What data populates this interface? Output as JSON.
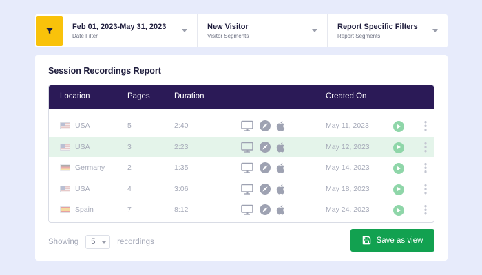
{
  "filters": {
    "date": {
      "title": "Feb 01, 2023-May 31, 2023",
      "subtitle": "Date Filter"
    },
    "visitor": {
      "title": "New Visitor",
      "subtitle": "Visitor Segments"
    },
    "report": {
      "title": "Report Specific Filters",
      "subtitle": "Report Segments"
    }
  },
  "report": {
    "title": "Session Recordings Report",
    "columns": {
      "location": "Location",
      "pages": "Pages",
      "duration": "Duration",
      "created": "Created On"
    },
    "rows": [
      {
        "location": "USA",
        "flag": "us-flag",
        "pages": "5",
        "duration": "2:40",
        "created": "May 11, 2023",
        "highlighted": false
      },
      {
        "location": "USA",
        "flag": "us-flag",
        "pages": "3",
        "duration": "2:23",
        "created": "May 12, 2023",
        "highlighted": true
      },
      {
        "location": "Germany",
        "flag": "germany-flag",
        "pages": "2",
        "duration": "1:35",
        "created": "May 14, 2023",
        "highlighted": false
      },
      {
        "location": "USA",
        "flag": "us-flag",
        "pages": "4",
        "duration": "3:06",
        "created": "May 18, 2023",
        "highlighted": false
      },
      {
        "location": "Spain",
        "flag": "spain-flag",
        "pages": "7",
        "duration": "8:12",
        "created": "May 24, 2023",
        "highlighted": false
      }
    ]
  },
  "footer": {
    "showing_label": "Showing",
    "page_size": "5",
    "recordings_label": "recordings",
    "save_label": "Save as view"
  },
  "colors": {
    "accent_yellow": "#f9c20a",
    "header_purple": "#2b1a57",
    "save_green": "#12a150",
    "highlight_row": "#e4f4ea",
    "play_green": "#8fd6a9"
  },
  "icons": [
    "filter-icon",
    "desktop-icon",
    "browser-icon",
    "apple-icon",
    "play-icon",
    "kebab-icon",
    "save-icon",
    "chevron-down-icon"
  ]
}
